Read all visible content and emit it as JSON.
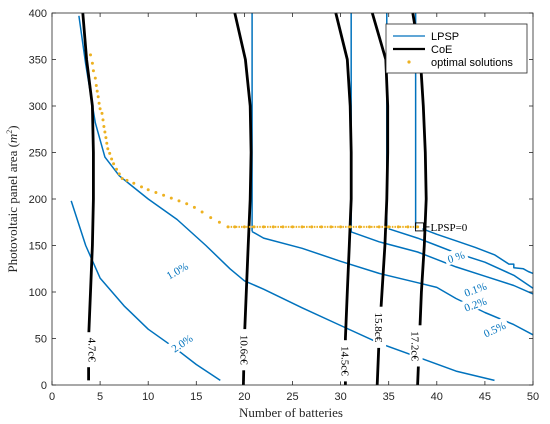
{
  "chart_data": {
    "type": "line",
    "title": "",
    "xlabel": "Number of batteries",
    "ylabel": "Photovoltaic panel area (m^2)",
    "ylabel_base": "Photovoltaic panel area (",
    "ylabel_unit": "m",
    "ylabel_exp": "2",
    "ylabel_close": ")",
    "xlim": [
      0,
      50
    ],
    "ylim": [
      0,
      400
    ],
    "xticks": [
      0,
      5,
      10,
      15,
      20,
      25,
      30,
      35,
      40,
      45,
      50
    ],
    "yticks": [
      0,
      50,
      100,
      150,
      200,
      250,
      300,
      350,
      400
    ],
    "grid": false,
    "legend_position": "top-right",
    "colors": {
      "lpsp": "#0072BD",
      "coe": "#000000",
      "optimal": "#EDB120",
      "text": "#262626"
    },
    "legend": [
      {
        "label": "LPSP",
        "marker": "line-blue"
      },
      {
        "label": "CoE",
        "marker": "line-black"
      },
      {
        "label": "optimal solutions",
        "marker": "dot-orange"
      }
    ],
    "annotation": {
      "text": "LPSP=0",
      "x": 38.2,
      "y": 170
    },
    "lpsp_series": [
      {
        "label": "2.0%",
        "label_at": [
          13.5,
          45,
          -34
        ],
        "points": [
          [
            2,
            198
          ],
          [
            3.5,
            150
          ],
          [
            5,
            115
          ],
          [
            7.5,
            85
          ],
          [
            10,
            60
          ],
          [
            13,
            38
          ],
          [
            15,
            22
          ],
          [
            17.5,
            5
          ]
        ]
      },
      {
        "label": "1.0%",
        "label_at": [
          13,
          123,
          -30
        ],
        "points": [
          [
            2.8,
            397
          ],
          [
            3.5,
            345
          ],
          [
            4.5,
            282
          ],
          [
            5.5,
            245
          ],
          [
            7,
            225
          ],
          [
            10,
            200
          ],
          [
            13,
            178
          ],
          [
            16,
            150
          ],
          [
            18.5,
            125
          ],
          [
            20,
            112
          ],
          [
            22,
            103
          ],
          [
            26,
            83
          ],
          [
            30,
            64
          ],
          [
            34,
            45
          ],
          [
            38,
            30
          ],
          [
            42,
            15
          ],
          [
            46,
            5
          ]
        ]
      },
      {
        "label": "0.5%",
        "label_at": [
          46,
          60,
          -25
        ],
        "points": [
          [
            20.8,
            165
          ],
          [
            22,
            158
          ],
          [
            26,
            147
          ],
          [
            30,
            133
          ],
          [
            34,
            120
          ],
          [
            38,
            110
          ],
          [
            40,
            105
          ],
          [
            42,
            93
          ],
          [
            45,
            78
          ],
          [
            48,
            65
          ],
          [
            50,
            54
          ]
        ]
      },
      {
        "label": "0.2%",
        "label_at": [
          44,
          87,
          -20
        ],
        "points": [
          [
            31,
            165
          ],
          [
            34,
            154
          ],
          [
            38,
            143
          ],
          [
            40,
            135
          ],
          [
            42,
            127
          ],
          [
            45,
            117
          ],
          [
            48,
            107
          ],
          [
            50,
            98
          ]
        ]
      },
      {
        "label": "0.1%",
        "label_at": [
          44,
          103,
          -20
        ],
        "points": [
          [
            35,
            168
          ],
          [
            38,
            158
          ],
          [
            40,
            150
          ],
          [
            42,
            142
          ],
          [
            45,
            132
          ],
          [
            48,
            118
          ],
          [
            50,
            104
          ]
        ]
      },
      {
        "label": "0 %",
        "label_at": [
          42,
          138,
          -18
        ],
        "points": [
          [
            38.5,
            168
          ],
          [
            40,
            162
          ],
          [
            42,
            155
          ],
          [
            44,
            148
          ],
          [
            46,
            140
          ],
          [
            47.5,
            130
          ],
          [
            48,
            130
          ],
          [
            48,
            126
          ],
          [
            49,
            125
          ],
          [
            49.5,
            122
          ],
          [
            50,
            120
          ]
        ]
      }
    ],
    "lpsp_vertical": [
      {
        "x": 20.8,
        "y_from": 165,
        "y_to": 400
      },
      {
        "x": 31.1,
        "y_from": 165,
        "y_to": 400
      },
      {
        "x": 34.8,
        "y_from": 168,
        "y_to": 400
      },
      {
        "x": 37.8,
        "y_from": 168,
        "y_to": 400
      }
    ],
    "coe_series": [
      {
        "label": "4.7c€",
        "label_at": [
          4.2,
          38,
          90
        ],
        "points": [
          [
            3.2,
            400
          ],
          [
            3.6,
            350
          ],
          [
            4.2,
            300
          ],
          [
            4.3,
            250
          ],
          [
            4.3,
            200
          ],
          [
            4.2,
            150
          ],
          [
            4.0,
            100
          ],
          [
            3.8,
            50
          ],
          [
            3.8,
            5
          ]
        ]
      },
      {
        "label": "10.6c€",
        "label_at": [
          20,
          38,
          90
        ],
        "points": [
          [
            19,
            400
          ],
          [
            20.1,
            350
          ],
          [
            20.6,
            300
          ],
          [
            20.7,
            250
          ],
          [
            20.6,
            200
          ],
          [
            20.4,
            150
          ],
          [
            20.2,
            100
          ],
          [
            20.0,
            50
          ],
          [
            19.9,
            0
          ]
        ]
      },
      {
        "label": "14.5c€",
        "label_at": [
          30.5,
          26,
          90
        ],
        "points": [
          [
            29.5,
            400
          ],
          [
            30.7,
            350
          ],
          [
            31.0,
            300
          ],
          [
            31.1,
            250
          ],
          [
            31.1,
            200
          ],
          [
            30.9,
            150
          ],
          [
            30.7,
            100
          ],
          [
            30.5,
            50
          ],
          [
            30.5,
            0
          ]
        ]
      },
      {
        "label": "15.8c€",
        "label_at": [
          34,
          62,
          90
        ],
        "points": [
          [
            33.3,
            400
          ],
          [
            34.7,
            350
          ],
          [
            34.9,
            300
          ],
          [
            34.9,
            250
          ],
          [
            34.8,
            200
          ],
          [
            34.6,
            150
          ],
          [
            34.3,
            100
          ],
          [
            34.0,
            50
          ],
          [
            33.8,
            0
          ]
        ]
      },
      {
        "label": "17.2c€",
        "label_at": [
          37.8,
          42,
          90
        ],
        "points": [
          [
            37.5,
            400
          ],
          [
            38.3,
            350
          ],
          [
            38.6,
            300
          ],
          [
            38.8,
            250
          ],
          [
            38.9,
            200
          ],
          [
            38.7,
            150
          ],
          [
            38.4,
            100
          ],
          [
            38.2,
            50
          ],
          [
            38.0,
            0
          ]
        ]
      }
    ],
    "optimal_solutions": [
      [
        4.0,
        355
      ],
      [
        4.2,
        346
      ],
      [
        4.3,
        338
      ],
      [
        4.5,
        330
      ],
      [
        4.6,
        322
      ],
      [
        4.7,
        316
      ],
      [
        4.8,
        310
      ],
      [
        4.9,
        303
      ],
      [
        5.0,
        297
      ],
      [
        5.2,
        292
      ],
      [
        5.3,
        285
      ],
      [
        5.4,
        278
      ],
      [
        5.5,
        272
      ],
      [
        5.6,
        266
      ],
      [
        5.7,
        260
      ],
      [
        5.8,
        254
      ],
      [
        6.0,
        249
      ],
      [
        6.2,
        243
      ],
      [
        6.4,
        238
      ],
      [
        6.7,
        232
      ],
      [
        7.0,
        227
      ],
      [
        7.3,
        222
      ],
      [
        7.8,
        220
      ],
      [
        8.5,
        217
      ],
      [
        9.3,
        213
      ],
      [
        10.0,
        210
      ],
      [
        10.8,
        207
      ],
      [
        11.6,
        204
      ],
      [
        12.4,
        201
      ],
      [
        13.2,
        198
      ],
      [
        14.0,
        195
      ],
      [
        14.8,
        191
      ],
      [
        15.6,
        186
      ],
      [
        16.5,
        180
      ],
      [
        17.4,
        175
      ],
      [
        18.3,
        170
      ],
      [
        19.0,
        170
      ],
      [
        20.0,
        170
      ],
      [
        21.0,
        170
      ],
      [
        22.0,
        170
      ],
      [
        23.0,
        170
      ],
      [
        24.0,
        170
      ],
      [
        25.0,
        170
      ],
      [
        26.0,
        170
      ],
      [
        27.0,
        170
      ],
      [
        28.0,
        170
      ],
      [
        29.0,
        170
      ],
      [
        30.0,
        170
      ],
      [
        31.0,
        170
      ],
      [
        32.0,
        170
      ],
      [
        33.0,
        170
      ],
      [
        34.0,
        170
      ],
      [
        35.0,
        170
      ],
      [
        36.0,
        170
      ],
      [
        37.0,
        170
      ],
      [
        38.0,
        170
      ]
    ]
  }
}
